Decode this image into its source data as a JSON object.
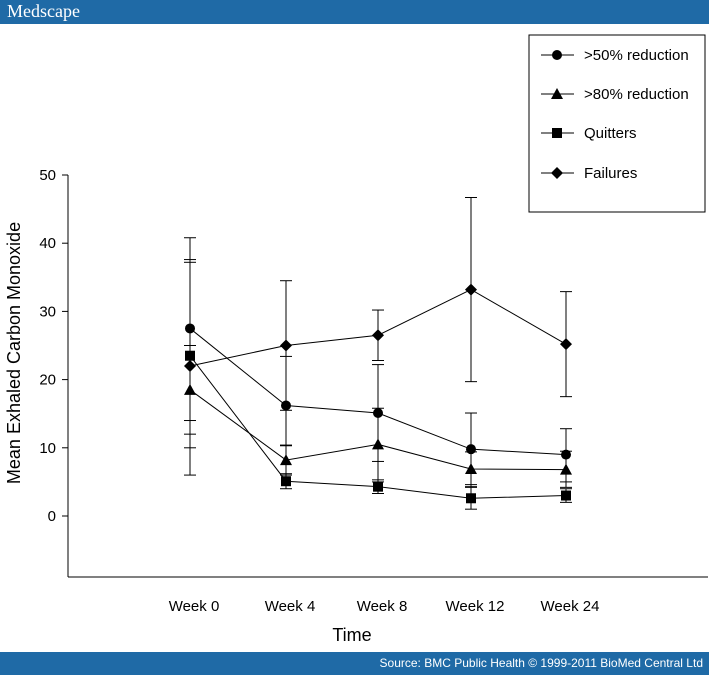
{
  "header": {
    "brand": "Medscape"
  },
  "footer": {
    "source": "Source: BMC Public Health © 1999-2011 BioMed Central Ltd"
  },
  "chart_data": {
    "type": "line",
    "title": "",
    "xlabel": "Time",
    "ylabel": "Mean Exhaled Carbon Monoxide",
    "categories": [
      "Week 0",
      "Week 4",
      "Week 8",
      "Week 12",
      "Week 24"
    ],
    "ylim": [
      -9,
      50
    ],
    "yticks": [
      0,
      10,
      20,
      30,
      40,
      50
    ],
    "grid": false,
    "legend_position": "top-right",
    "series": [
      {
        "name": ">50% reduction",
        "marker": "circle",
        "values": [
          27.5,
          16.2,
          15.1,
          9.8,
          9.0
        ],
        "err_low": [
          6.0,
          10.3,
          8.0,
          4.6,
          5.0
        ],
        "err_high": [
          37.6,
          23.4,
          22.2,
          15.1,
          12.8
        ]
      },
      {
        "name": ">80% reduction",
        "marker": "triangle",
        "values": [
          18.5,
          8.2,
          10.5,
          6.9,
          6.8
        ],
        "err_low": [
          12.0,
          6.0,
          5.0,
          4.3,
          4.2
        ],
        "err_high": [
          25.0,
          10.4,
          15.8,
          9.4,
          9.5
        ]
      },
      {
        "name": "Quitters",
        "marker": "square",
        "values": [
          23.5,
          5.1,
          4.3,
          2.6,
          3.0
        ],
        "err_low": [
          10.0,
          4.0,
          3.3,
          1.0,
          2.0
        ],
        "err_high": [
          37.2,
          6.2,
          5.3,
          4.2,
          4.0
        ]
      },
      {
        "name": "Failures",
        "marker": "diamond",
        "values": [
          22.0,
          25.0,
          26.5,
          33.2,
          25.2
        ],
        "err_low": [
          14.0,
          15.5,
          22.8,
          19.7,
          17.5
        ],
        "err_high": [
          40.8,
          34.5,
          30.2,
          46.7,
          32.9
        ]
      }
    ]
  }
}
